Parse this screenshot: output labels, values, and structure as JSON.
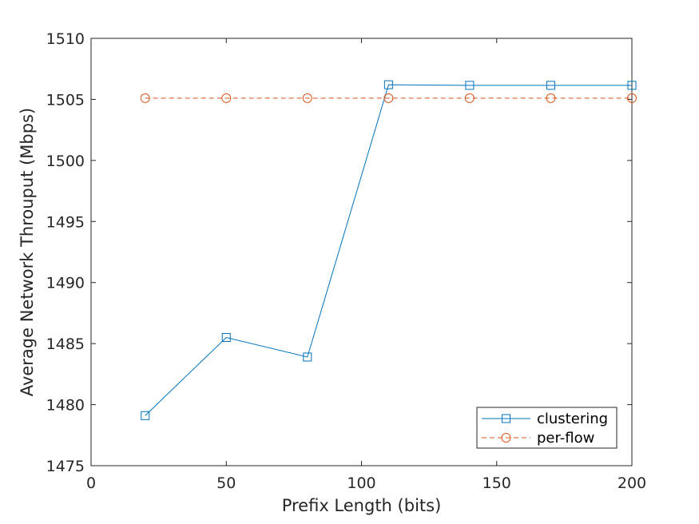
{
  "chart_data": {
    "type": "line",
    "title": "",
    "xlabel": "Prefix Length (bits)",
    "ylabel": "Average Network Throuput (Mbps)",
    "xlim": [
      0,
      200
    ],
    "ylim": [
      1475,
      1510
    ],
    "xticks": [
      0,
      50,
      100,
      150,
      200
    ],
    "yticks": [
      1475,
      1480,
      1485,
      1490,
      1495,
      1500,
      1505,
      1510
    ],
    "grid": false,
    "legend_position": "bottom-right",
    "series": [
      {
        "name": "clustering",
        "color": "#0072BD",
        "line_style": "solid",
        "marker": "square",
        "x": [
          20,
          50,
          80,
          110,
          140,
          170,
          200
        ],
        "y": [
          1479.1,
          1485.5,
          1483.9,
          1506.2,
          1506.15,
          1506.15,
          1506.15
        ]
      },
      {
        "name": "per-flow",
        "color": "#D95319",
        "line_style": "dashed",
        "marker": "circle",
        "x": [
          20,
          50,
          80,
          110,
          140,
          170,
          200
        ],
        "y": [
          1505.1,
          1505.1,
          1505.1,
          1505.1,
          1505.1,
          1505.1,
          1505.1
        ]
      }
    ]
  }
}
